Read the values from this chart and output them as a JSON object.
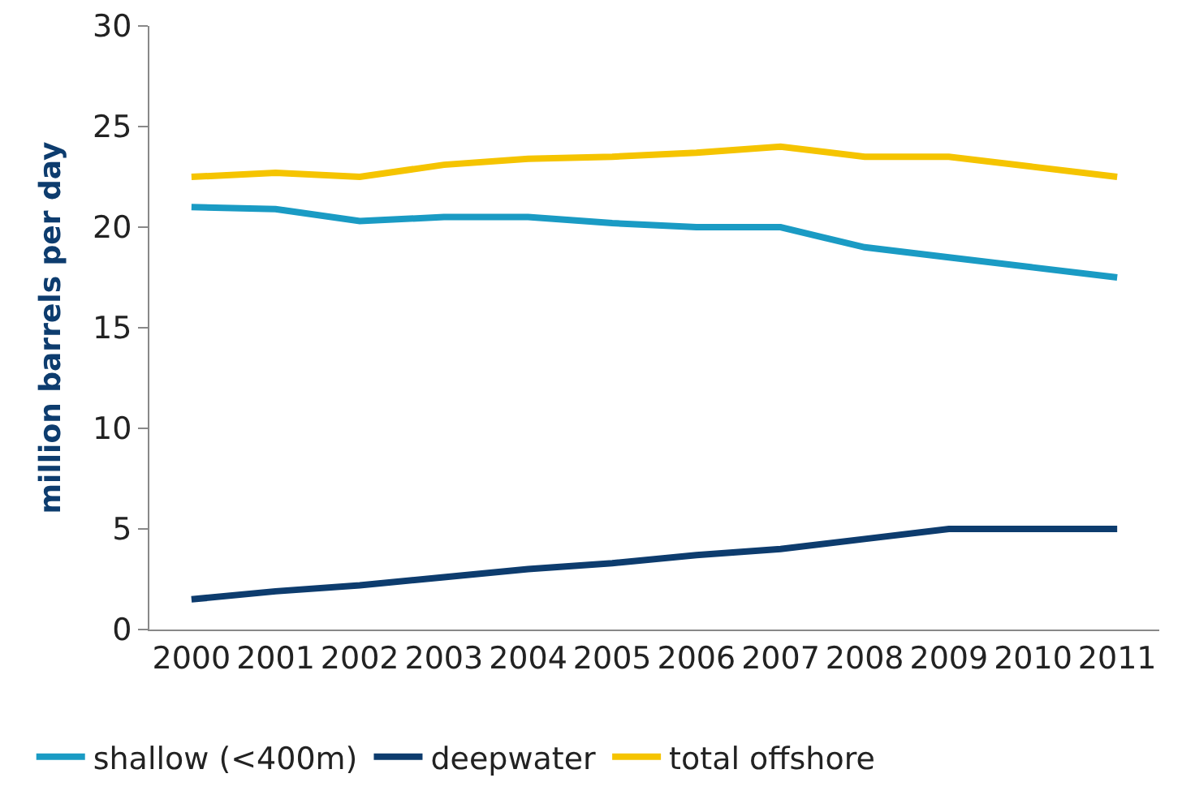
{
  "chart_data": {
    "type": "line",
    "ylabel": "million barrels per day",
    "categories": [
      "2000",
      "2001",
      "2002",
      "2003",
      "2004",
      "2005",
      "2006",
      "2007",
      "2008",
      "2009",
      "2010",
      "2011"
    ],
    "series": [
      {
        "name": "shallow (<400m)",
        "color": "#1a9bc4",
        "values": [
          21.0,
          20.9,
          20.3,
          20.5,
          20.5,
          20.2,
          20.0,
          20.0,
          19.0,
          18.5,
          18.0,
          17.5
        ]
      },
      {
        "name": "deepwater",
        "color": "#0d3c6e",
        "values": [
          1.5,
          1.9,
          2.2,
          2.6,
          3.0,
          3.3,
          3.7,
          4.0,
          4.5,
          5.0,
          5.0,
          5.0
        ]
      },
      {
        "name": "total offshore",
        "color": "#f5c400",
        "values": [
          22.5,
          22.7,
          22.5,
          23.1,
          23.4,
          23.5,
          23.7,
          24.0,
          23.5,
          23.5,
          23.0,
          22.5
        ]
      }
    ],
    "ylim": [
      0,
      30
    ],
    "yticks": [
      0,
      5,
      10,
      15,
      20,
      25,
      30
    ],
    "grid": false,
    "legend": "bottom",
    "marker": "none",
    "line_style": "solid"
  }
}
